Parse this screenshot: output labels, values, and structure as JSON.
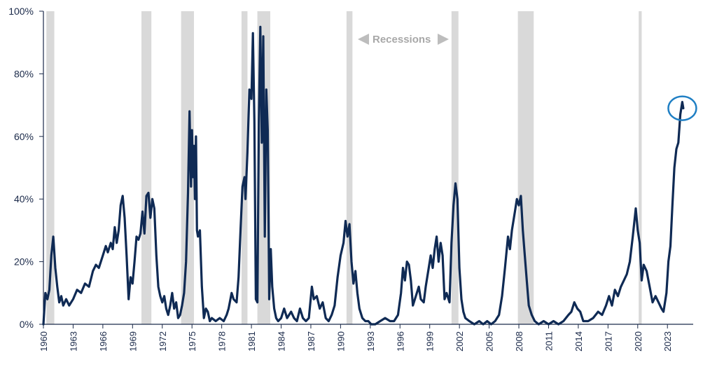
{
  "chart_data": {
    "type": "line",
    "title": "",
    "xlabel": "",
    "ylabel": "",
    "x_range": [
      1960,
      2025.6
    ],
    "ylim": [
      0,
      100
    ],
    "y_ticks": [
      0,
      20,
      40,
      60,
      80,
      100
    ],
    "y_tick_labels": [
      "0%",
      "20%",
      "40%",
      "60%",
      "80%",
      "100%"
    ],
    "x_ticks": [
      1960,
      1963,
      1966,
      1969,
      1972,
      1975,
      1978,
      1981,
      1984,
      1987,
      1990,
      1993,
      1996,
      1999,
      2002,
      2005,
      2008,
      2011,
      2014,
      2017,
      2020,
      2023
    ],
    "x_tick_labels": [
      "1960",
      "1963",
      "1966",
      "1969",
      "1972",
      "1975",
      "1978",
      "1981",
      "1984",
      "1987",
      "1990",
      "1993",
      "1996",
      "1999",
      "2002",
      "2005",
      "2008",
      "2011",
      "2014",
      "2017",
      "2020",
      "2023"
    ],
    "grid": false,
    "line_color": "#0f2a54",
    "highlight_color": "#1f7fc4",
    "recession_color": "#d9d9d9",
    "recession_label": "Recessions",
    "recession_label_color": "#a8a8a8",
    "recessions": [
      [
        1960.3,
        1961.1
      ],
      [
        1969.9,
        1970.9
      ],
      [
        1973.9,
        1975.2
      ],
      [
        1980.0,
        1980.6
      ],
      [
        1981.6,
        1982.9
      ],
      [
        1990.6,
        1991.2
      ],
      [
        2001.2,
        2001.9
      ],
      [
        2007.9,
        2009.5
      ],
      [
        2020.1,
        2020.4
      ]
    ],
    "highlight_point": {
      "x": 2024.5,
      "y": 69
    },
    "series": [
      {
        "values": [
          [
            1960.0,
            0
          ],
          [
            1960.2,
            10
          ],
          [
            1960.4,
            8
          ],
          [
            1960.6,
            11
          ],
          [
            1960.8,
            22
          ],
          [
            1961.0,
            28
          ],
          [
            1961.2,
            18
          ],
          [
            1961.4,
            12
          ],
          [
            1961.6,
            7
          ],
          [
            1961.8,
            9
          ],
          [
            1962.0,
            6
          ],
          [
            1962.3,
            8
          ],
          [
            1962.6,
            6
          ],
          [
            1963.0,
            8
          ],
          [
            1963.4,
            11
          ],
          [
            1963.8,
            10
          ],
          [
            1964.2,
            13
          ],
          [
            1964.6,
            12
          ],
          [
            1965.0,
            17
          ],
          [
            1965.3,
            19
          ],
          [
            1965.6,
            18
          ],
          [
            1966.0,
            22
          ],
          [
            1966.3,
            25
          ],
          [
            1966.5,
            23
          ],
          [
            1966.8,
            26
          ],
          [
            1967.0,
            24
          ],
          [
            1967.2,
            31
          ],
          [
            1967.4,
            26
          ],
          [
            1967.6,
            30
          ],
          [
            1967.8,
            38
          ],
          [
            1968.0,
            41
          ],
          [
            1968.2,
            34
          ],
          [
            1968.4,
            22
          ],
          [
            1968.6,
            8
          ],
          [
            1968.8,
            15
          ],
          [
            1969.0,
            13
          ],
          [
            1969.2,
            20
          ],
          [
            1969.4,
            28
          ],
          [
            1969.6,
            27
          ],
          [
            1969.8,
            29
          ],
          [
            1970.0,
            36
          ],
          [
            1970.2,
            29
          ],
          [
            1970.4,
            41
          ],
          [
            1970.6,
            42
          ],
          [
            1970.8,
            34
          ],
          [
            1971.0,
            40
          ],
          [
            1971.2,
            37
          ],
          [
            1971.4,
            22
          ],
          [
            1971.6,
            12
          ],
          [
            1971.8,
            9
          ],
          [
            1972.0,
            7
          ],
          [
            1972.2,
            9
          ],
          [
            1972.4,
            5
          ],
          [
            1972.6,
            3
          ],
          [
            1972.8,
            6
          ],
          [
            1973.0,
            10
          ],
          [
            1973.2,
            5
          ],
          [
            1973.4,
            7
          ],
          [
            1973.6,
            2
          ],
          [
            1973.8,
            3
          ],
          [
            1974.0,
            6
          ],
          [
            1974.2,
            10
          ],
          [
            1974.4,
            20
          ],
          [
            1974.6,
            42
          ],
          [
            1974.75,
            68
          ],
          [
            1974.9,
            44
          ],
          [
            1975.0,
            62
          ],
          [
            1975.1,
            47
          ],
          [
            1975.2,
            57
          ],
          [
            1975.3,
            40
          ],
          [
            1975.4,
            60
          ],
          [
            1975.5,
            30
          ],
          [
            1975.6,
            28
          ],
          [
            1975.8,
            30
          ],
          [
            1976.0,
            12
          ],
          [
            1976.2,
            2
          ],
          [
            1976.4,
            5
          ],
          [
            1976.6,
            4
          ],
          [
            1976.8,
            1
          ],
          [
            1977.0,
            2
          ],
          [
            1977.4,
            1
          ],
          [
            1977.8,
            2
          ],
          [
            1978.2,
            1
          ],
          [
            1978.5,
            3
          ],
          [
            1978.7,
            5
          ],
          [
            1979.0,
            10
          ],
          [
            1979.2,
            8
          ],
          [
            1979.5,
            7
          ],
          [
            1979.7,
            15
          ],
          [
            1979.9,
            30
          ],
          [
            1980.1,
            44
          ],
          [
            1980.3,
            47
          ],
          [
            1980.4,
            40
          ],
          [
            1980.6,
            55
          ],
          [
            1980.8,
            75
          ],
          [
            1981.0,
            72
          ],
          [
            1981.15,
            93
          ],
          [
            1981.3,
            65
          ],
          [
            1981.45,
            8
          ],
          [
            1981.6,
            7
          ],
          [
            1981.75,
            65
          ],
          [
            1981.9,
            95
          ],
          [
            1982.05,
            58
          ],
          [
            1982.2,
            92
          ],
          [
            1982.35,
            28
          ],
          [
            1982.5,
            75
          ],
          [
            1982.65,
            62
          ],
          [
            1982.8,
            8
          ],
          [
            1982.95,
            24
          ],
          [
            1983.1,
            12
          ],
          [
            1983.3,
            5
          ],
          [
            1983.5,
            2
          ],
          [
            1983.7,
            1
          ],
          [
            1984.0,
            2
          ],
          [
            1984.3,
            5
          ],
          [
            1984.6,
            2
          ],
          [
            1985.0,
            4
          ],
          [
            1985.3,
            2
          ],
          [
            1985.6,
            1
          ],
          [
            1985.9,
            5
          ],
          [
            1986.2,
            2
          ],
          [
            1986.5,
            1
          ],
          [
            1986.8,
            2
          ],
          [
            1987.1,
            12
          ],
          [
            1987.3,
            8
          ],
          [
            1987.6,
            9
          ],
          [
            1987.9,
            5
          ],
          [
            1988.2,
            7
          ],
          [
            1988.5,
            2
          ],
          [
            1988.8,
            1
          ],
          [
            1989.1,
            3
          ],
          [
            1989.4,
            6
          ],
          [
            1989.7,
            15
          ],
          [
            1990.0,
            22
          ],
          [
            1990.3,
            26
          ],
          [
            1990.5,
            33
          ],
          [
            1990.7,
            28
          ],
          [
            1990.9,
            32
          ],
          [
            1991.1,
            20
          ],
          [
            1991.3,
            13
          ],
          [
            1991.5,
            17
          ],
          [
            1991.7,
            10
          ],
          [
            1991.9,
            5
          ],
          [
            1992.2,
            2
          ],
          [
            1992.5,
            1
          ],
          [
            1992.8,
            1
          ],
          [
            1993.1,
            0
          ],
          [
            1993.5,
            0
          ],
          [
            1994.0,
            1
          ],
          [
            1994.5,
            2
          ],
          [
            1995.0,
            1
          ],
          [
            1995.4,
            1
          ],
          [
            1995.8,
            3
          ],
          [
            1996.1,
            10
          ],
          [
            1996.3,
            18
          ],
          [
            1996.5,
            14
          ],
          [
            1996.7,
            20
          ],
          [
            1996.9,
            19
          ],
          [
            1997.1,
            14
          ],
          [
            1997.3,
            6
          ],
          [
            1997.6,
            9
          ],
          [
            1997.9,
            12
          ],
          [
            1998.1,
            8
          ],
          [
            1998.4,
            7
          ],
          [
            1998.6,
            12
          ],
          [
            1998.9,
            18
          ],
          [
            1999.1,
            22
          ],
          [
            1999.3,
            18
          ],
          [
            1999.5,
            24
          ],
          [
            1999.7,
            28
          ],
          [
            1999.9,
            20
          ],
          [
            2000.1,
            26
          ],
          [
            2000.3,
            22
          ],
          [
            2000.5,
            8
          ],
          [
            2000.7,
            10
          ],
          [
            2001.0,
            7
          ],
          [
            2001.2,
            26
          ],
          [
            2001.4,
            38
          ],
          [
            2001.6,
            45
          ],
          [
            2001.8,
            40
          ],
          [
            2002.0,
            18
          ],
          [
            2002.2,
            8
          ],
          [
            2002.4,
            4
          ],
          [
            2002.6,
            2
          ],
          [
            2003.0,
            1
          ],
          [
            2003.5,
            0
          ],
          [
            2004.0,
            1
          ],
          [
            2004.4,
            0
          ],
          [
            2004.8,
            1
          ],
          [
            2005.2,
            0
          ],
          [
            2005.6,
            1
          ],
          [
            2006.0,
            3
          ],
          [
            2006.3,
            9
          ],
          [
            2006.6,
            18
          ],
          [
            2006.9,
            28
          ],
          [
            2007.1,
            24
          ],
          [
            2007.3,
            30
          ],
          [
            2007.6,
            36
          ],
          [
            2007.8,
            40
          ],
          [
            2008.0,
            38
          ],
          [
            2008.2,
            41
          ],
          [
            2008.4,
            30
          ],
          [
            2008.6,
            22
          ],
          [
            2008.8,
            14
          ],
          [
            2009.0,
            6
          ],
          [
            2009.3,
            3
          ],
          [
            2009.6,
            1
          ],
          [
            2010.0,
            0
          ],
          [
            2010.5,
            1
          ],
          [
            2011.0,
            0
          ],
          [
            2011.5,
            1
          ],
          [
            2012.0,
            0
          ],
          [
            2012.5,
            1
          ],
          [
            2013.0,
            3
          ],
          [
            2013.3,
            4
          ],
          [
            2013.6,
            7
          ],
          [
            2013.9,
            5
          ],
          [
            2014.2,
            4
          ],
          [
            2014.5,
            1
          ],
          [
            2015.0,
            1
          ],
          [
            2015.5,
            2
          ],
          [
            2016.0,
            4
          ],
          [
            2016.4,
            3
          ],
          [
            2016.8,
            6
          ],
          [
            2017.1,
            9
          ],
          [
            2017.4,
            6
          ],
          [
            2017.7,
            11
          ],
          [
            2018.0,
            9
          ],
          [
            2018.3,
            12
          ],
          [
            2018.6,
            14
          ],
          [
            2018.9,
            16
          ],
          [
            2019.2,
            20
          ],
          [
            2019.5,
            28
          ],
          [
            2019.8,
            37
          ],
          [
            2020.0,
            30
          ],
          [
            2020.2,
            26
          ],
          [
            2020.4,
            14
          ],
          [
            2020.6,
            19
          ],
          [
            2020.9,
            17
          ],
          [
            2021.2,
            12
          ],
          [
            2021.5,
            7
          ],
          [
            2021.8,
            9
          ],
          [
            2022.1,
            7
          ],
          [
            2022.4,
            5
          ],
          [
            2022.6,
            4
          ],
          [
            2022.9,
            10
          ],
          [
            2023.1,
            20
          ],
          [
            2023.3,
            25
          ],
          [
            2023.5,
            38
          ],
          [
            2023.7,
            50
          ],
          [
            2023.9,
            56
          ],
          [
            2024.1,
            58
          ],
          [
            2024.3,
            67
          ],
          [
            2024.5,
            71
          ],
          [
            2024.6,
            69
          ]
        ]
      }
    ]
  }
}
